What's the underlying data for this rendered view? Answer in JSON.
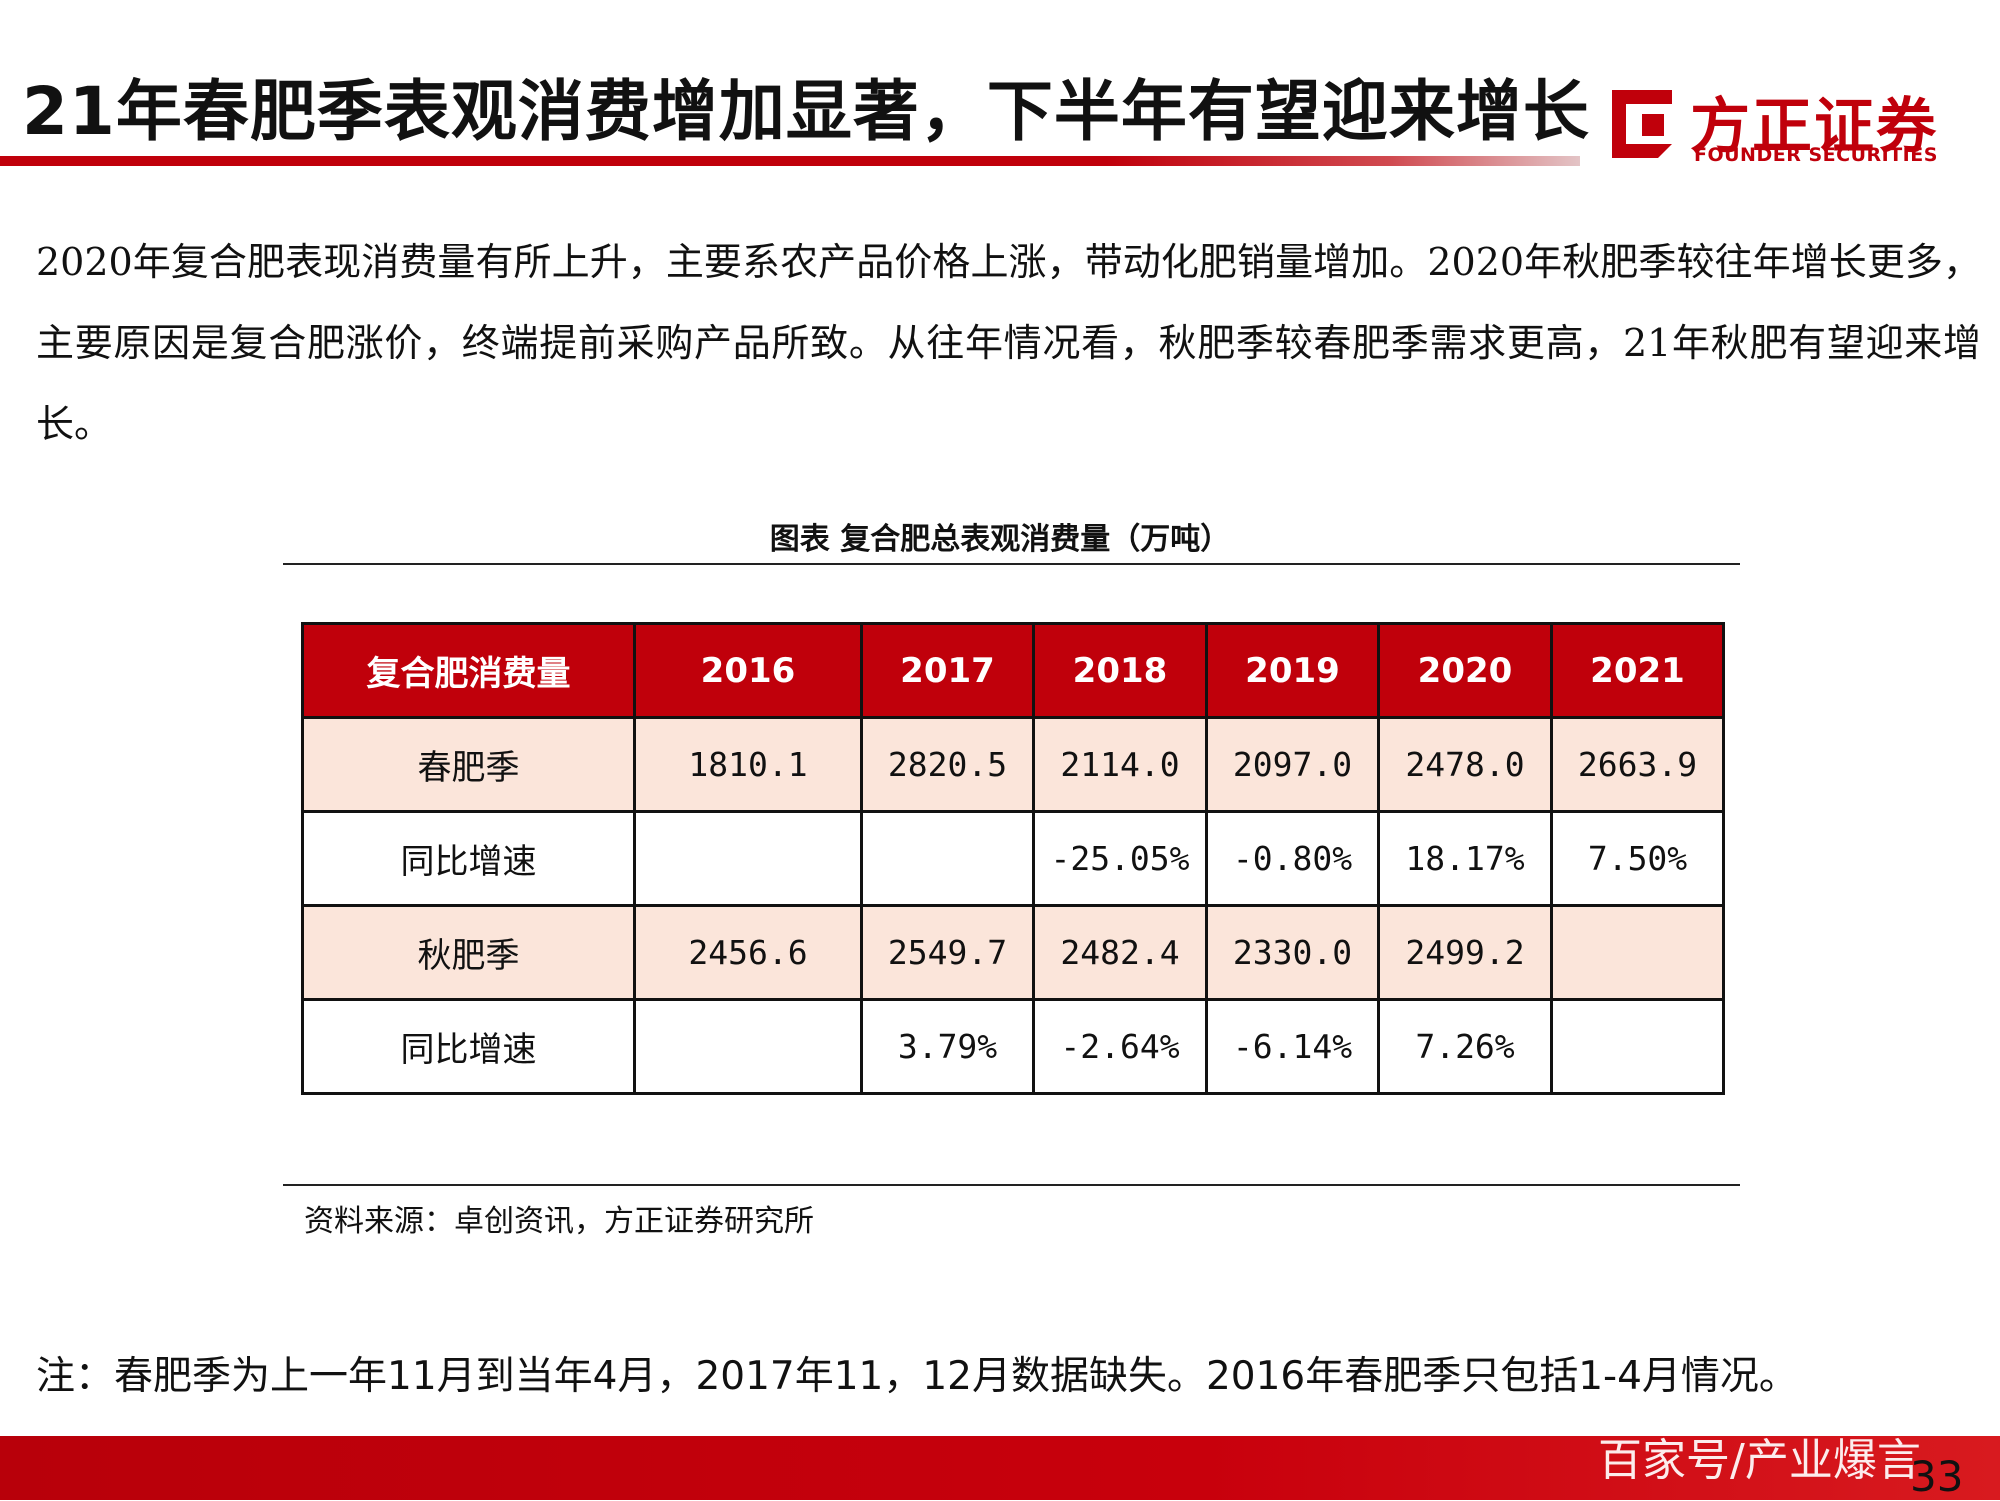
{
  "header": {
    "title": "21年春肥季表观消费增加显著，下半年有望迎来增长",
    "logo_cn": "方正证券",
    "logo_en": "FOUNDER SECURITIES",
    "accent_color": "#c0000b"
  },
  "paragraph": "2020年复合肥表现消费量有所上升，主要系农产品价格上涨，带动化肥销量增加。2020年秋肥季较往年增长更多，主要原因是复合肥涨价，终端提前采购产品所致。从往年情况看，秋肥季较春肥季需求更高，21年秋肥有望迎来增长。",
  "table": {
    "title": "图表 复合肥总表观消费量（万吨）",
    "columns": [
      "复合肥消费量",
      "2016",
      "2017",
      "2018",
      "2019",
      "2020",
      "2021"
    ],
    "rows": [
      [
        "春肥季",
        "1810.1",
        "2820.5",
        "2114.0",
        "2097.0",
        "2478.0",
        "2663.9"
      ],
      [
        "同比增速",
        "",
        "",
        "-25.05%",
        "-0.80%",
        "18.17%",
        "7.50%"
      ],
      [
        "秋肥季",
        "2456.6",
        "2549.7",
        "2482.4",
        "2330.0",
        "2499.2",
        ""
      ],
      [
        "同比增速",
        "",
        "3.79%",
        "-2.64%",
        "-6.14%",
        "7.26%",
        ""
      ]
    ],
    "source": "资料来源：卓创资讯，方正证券研究所"
  },
  "note": "注：春肥季为上一年11月到当年4月，2017年11，12月数据缺失。2016年春肥季只包括1-4月情况。",
  "footer": {
    "watermark": "百家号/产业爆言",
    "page_number": "33"
  }
}
